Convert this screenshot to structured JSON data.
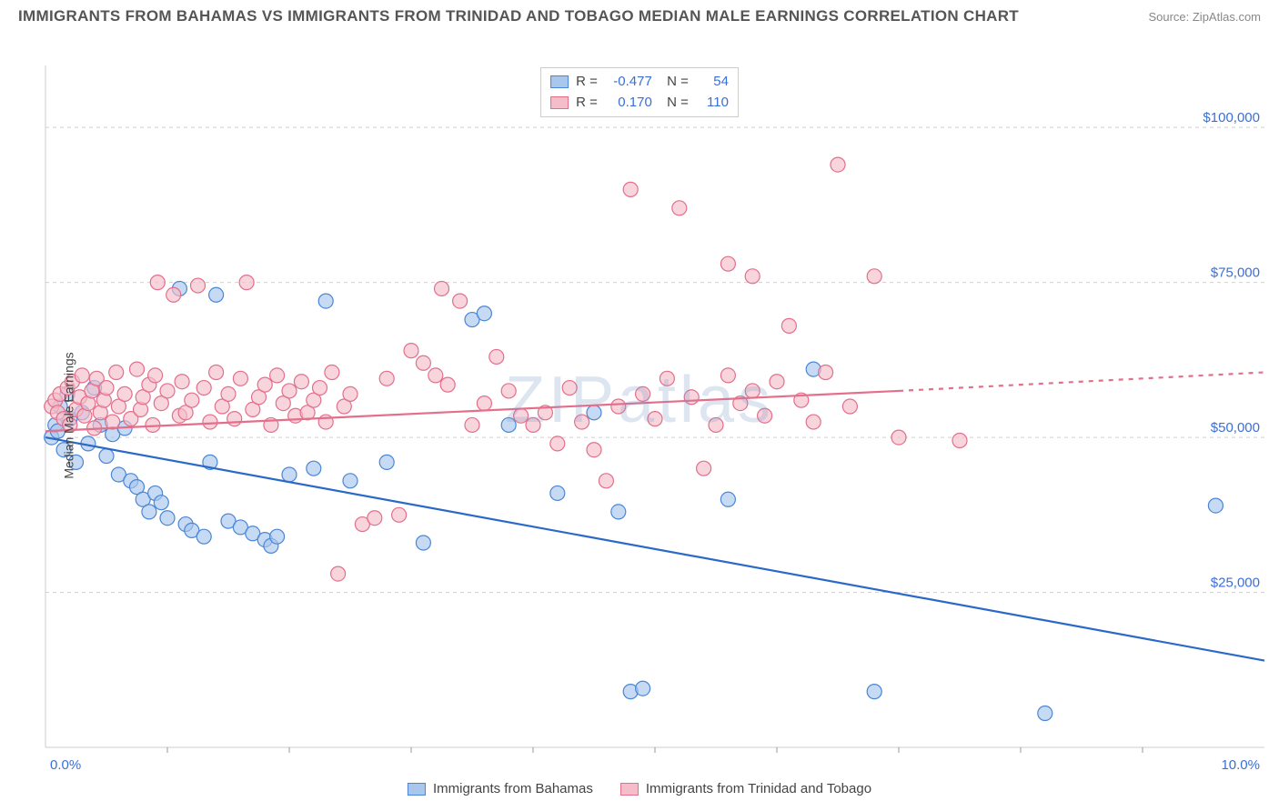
{
  "title": "IMMIGRANTS FROM BAHAMAS VS IMMIGRANTS FROM TRINIDAD AND TOBAGO MEDIAN MALE EARNINGS CORRELATION CHART",
  "source": "Source: ZipAtlas.com",
  "ylabel": "Median Male Earnings",
  "watermark": "ZIPatlas",
  "xlim": [
    0,
    10
  ],
  "ylim": [
    0,
    110000
  ],
  "x_ticks": [
    0,
    10
  ],
  "x_tick_labels": [
    "0.0%",
    "10.0%"
  ],
  "y_ticks": [
    25000,
    50000,
    75000,
    100000
  ],
  "y_tick_labels": [
    "$25,000",
    "$50,000",
    "$75,000",
    "$100,000"
  ],
  "grid_color": "#d0d0d0",
  "grid_dash": "4,4",
  "background_color": "#ffffff",
  "plot_border_color": "#cccccc",
  "series": [
    {
      "name": "Immigrants from Bahamas",
      "key": "bahamas",
      "marker_fill": "#a9c6ec",
      "marker_stroke": "#4a86d6",
      "marker_r": 8,
      "marker_opacity": 0.65,
      "line_color": "#2a69c7",
      "line_width": 2.2,
      "R": "-0.477",
      "N": "54",
      "trend": {
        "x1": 0,
        "y1": 50000,
        "x2": 10,
        "y2": 14000
      },
      "points": [
        [
          0.05,
          50000
        ],
        [
          0.08,
          52000
        ],
        [
          0.1,
          51000
        ],
        [
          0.12,
          55000
        ],
        [
          0.15,
          48000
        ],
        [
          0.18,
          57000
        ],
        [
          0.2,
          53000
        ],
        [
          0.25,
          46000
        ],
        [
          0.3,
          54000
        ],
        [
          0.35,
          49000
        ],
        [
          0.4,
          58000
        ],
        [
          0.45,
          52000
        ],
        [
          0.5,
          47000
        ],
        [
          0.55,
          50500
        ],
        [
          0.6,
          44000
        ],
        [
          0.65,
          51500
        ],
        [
          0.7,
          43000
        ],
        [
          0.75,
          42000
        ],
        [
          0.8,
          40000
        ],
        [
          0.85,
          38000
        ],
        [
          0.9,
          41000
        ],
        [
          0.95,
          39500
        ],
        [
          1.0,
          37000
        ],
        [
          1.1,
          74000
        ],
        [
          1.15,
          36000
        ],
        [
          1.2,
          35000
        ],
        [
          1.3,
          34000
        ],
        [
          1.35,
          46000
        ],
        [
          1.4,
          73000
        ],
        [
          1.5,
          36500
        ],
        [
          1.6,
          35500
        ],
        [
          1.7,
          34500
        ],
        [
          1.8,
          33500
        ],
        [
          1.85,
          32500
        ],
        [
          1.9,
          34000
        ],
        [
          2.0,
          44000
        ],
        [
          2.2,
          45000
        ],
        [
          2.3,
          72000
        ],
        [
          2.5,
          43000
        ],
        [
          2.8,
          46000
        ],
        [
          3.1,
          33000
        ],
        [
          3.5,
          69000
        ],
        [
          3.6,
          70000
        ],
        [
          3.8,
          52000
        ],
        [
          4.2,
          41000
        ],
        [
          4.5,
          54000
        ],
        [
          4.7,
          38000
        ],
        [
          4.8,
          9000
        ],
        [
          4.9,
          9500
        ],
        [
          5.6,
          40000
        ],
        [
          6.3,
          61000
        ],
        [
          6.8,
          9000
        ],
        [
          8.2,
          5500
        ],
        [
          9.6,
          39000
        ]
      ]
    },
    {
      "name": "Immigrants from Trinidad and Tobago",
      "key": "trinidad",
      "marker_fill": "#f5bdc9",
      "marker_stroke": "#e36f8a",
      "marker_r": 8,
      "marker_opacity": 0.65,
      "line_color": "#e36f8a",
      "line_width": 2.2,
      "line_dash_ext": "5,6",
      "R": "0.170",
      "N": "110",
      "trend": {
        "x1": 0,
        "y1": 51000,
        "x2": 7.0,
        "y2": 57500
      },
      "trend_ext": {
        "x1": 7.0,
        "y1": 57500,
        "x2": 10,
        "y2": 60500
      },
      "points": [
        [
          0.05,
          55000
        ],
        [
          0.08,
          56000
        ],
        [
          0.1,
          54000
        ],
        [
          0.12,
          57000
        ],
        [
          0.15,
          53000
        ],
        [
          0.18,
          58000
        ],
        [
          0.2,
          52000
        ],
        [
          0.22,
          59000
        ],
        [
          0.25,
          54500
        ],
        [
          0.28,
          56500
        ],
        [
          0.3,
          60000
        ],
        [
          0.32,
          53500
        ],
        [
          0.35,
          55500
        ],
        [
          0.38,
          57500
        ],
        [
          0.4,
          51500
        ],
        [
          0.42,
          59500
        ],
        [
          0.45,
          54000
        ],
        [
          0.48,
          56000
        ],
        [
          0.5,
          58000
        ],
        [
          0.55,
          52500
        ],
        [
          0.58,
          60500
        ],
        [
          0.6,
          55000
        ],
        [
          0.65,
          57000
        ],
        [
          0.7,
          53000
        ],
        [
          0.75,
          61000
        ],
        [
          0.78,
          54500
        ],
        [
          0.8,
          56500
        ],
        [
          0.85,
          58500
        ],
        [
          0.88,
          52000
        ],
        [
          0.9,
          60000
        ],
        [
          0.92,
          75000
        ],
        [
          0.95,
          55500
        ],
        [
          1.0,
          57500
        ],
        [
          1.05,
          73000
        ],
        [
          1.1,
          53500
        ],
        [
          1.12,
          59000
        ],
        [
          1.15,
          54000
        ],
        [
          1.2,
          56000
        ],
        [
          1.25,
          74500
        ],
        [
          1.3,
          58000
        ],
        [
          1.35,
          52500
        ],
        [
          1.4,
          60500
        ],
        [
          1.45,
          55000
        ],
        [
          1.5,
          57000
        ],
        [
          1.55,
          53000
        ],
        [
          1.6,
          59500
        ],
        [
          1.65,
          75000
        ],
        [
          1.7,
          54500
        ],
        [
          1.75,
          56500
        ],
        [
          1.8,
          58500
        ],
        [
          1.85,
          52000
        ],
        [
          1.9,
          60000
        ],
        [
          1.95,
          55500
        ],
        [
          2.0,
          57500
        ],
        [
          2.05,
          53500
        ],
        [
          2.1,
          59000
        ],
        [
          2.15,
          54000
        ],
        [
          2.2,
          56000
        ],
        [
          2.25,
          58000
        ],
        [
          2.3,
          52500
        ],
        [
          2.35,
          60500
        ],
        [
          2.4,
          28000
        ],
        [
          2.45,
          55000
        ],
        [
          2.5,
          57000
        ],
        [
          2.6,
          36000
        ],
        [
          2.7,
          37000
        ],
        [
          2.8,
          59500
        ],
        [
          2.9,
          37500
        ],
        [
          3.0,
          64000
        ],
        [
          3.1,
          62000
        ],
        [
          3.2,
          60000
        ],
        [
          3.25,
          74000
        ],
        [
          3.3,
          58500
        ],
        [
          3.4,
          72000
        ],
        [
          3.5,
          52000
        ],
        [
          3.6,
          55500
        ],
        [
          3.7,
          63000
        ],
        [
          3.8,
          57500
        ],
        [
          3.9,
          53500
        ],
        [
          4.0,
          52000
        ],
        [
          4.1,
          54000
        ],
        [
          4.2,
          49000
        ],
        [
          4.3,
          58000
        ],
        [
          4.4,
          52500
        ],
        [
          4.5,
          48000
        ],
        [
          4.6,
          43000
        ],
        [
          4.7,
          55000
        ],
        [
          4.8,
          90000
        ],
        [
          4.9,
          57000
        ],
        [
          5.0,
          53000
        ],
        [
          5.1,
          59500
        ],
        [
          5.2,
          87000
        ],
        [
          5.3,
          56500
        ],
        [
          5.4,
          45000
        ],
        [
          5.5,
          52000
        ],
        [
          5.6,
          60000
        ],
        [
          5.7,
          55500
        ],
        [
          5.8,
          57500
        ],
        [
          5.9,
          53500
        ],
        [
          6.0,
          59000
        ],
        [
          6.1,
          68000
        ],
        [
          6.2,
          56000
        ],
        [
          6.5,
          94000
        ],
        [
          6.3,
          52500
        ],
        [
          6.4,
          60500
        ],
        [
          6.6,
          55000
        ],
        [
          6.8,
          76000
        ],
        [
          7.0,
          50000
        ],
        [
          7.5,
          49500
        ],
        [
          5.8,
          76000
        ],
        [
          5.6,
          78000
        ]
      ]
    }
  ],
  "legend_bottom": [
    {
      "key": "bahamas",
      "label": "Immigrants from Bahamas"
    },
    {
      "key": "trinidad",
      "label": "Immigrants from Trinidad and Tobago"
    }
  ]
}
